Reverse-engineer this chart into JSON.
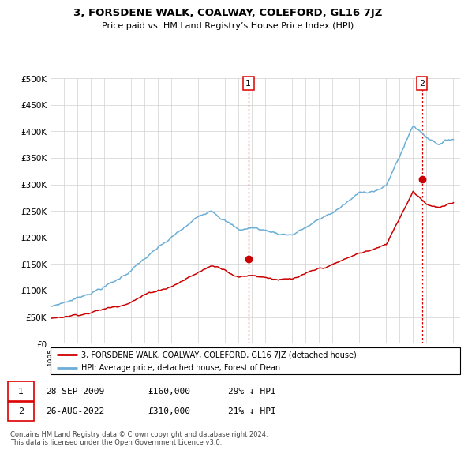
{
  "title": "3, FORSDENE WALK, COALWAY, COLEFORD, GL16 7JZ",
  "subtitle": "Price paid vs. HM Land Registry’s House Price Index (HPI)",
  "hpi_color": "#6baed6",
  "price_color": "#cc0000",
  "marker_color": "#cc0000",
  "vline_color": "#dd0000",
  "ylim": [
    0,
    500000
  ],
  "yticks": [
    0,
    50000,
    100000,
    150000,
    200000,
    250000,
    300000,
    350000,
    400000,
    450000,
    500000
  ],
  "ytick_labels": [
    "£0",
    "£50K",
    "£100K",
    "£150K",
    "£200K",
    "£250K",
    "£300K",
    "£350K",
    "£400K",
    "£450K",
    "£500K"
  ],
  "sale1_date": 2009.74,
  "sale1_price": 160000,
  "sale1_label": "1",
  "sale2_date": 2022.65,
  "sale2_price": 310000,
  "sale2_label": "2",
  "legend_property": "3, FORSDENE WALK, COALWAY, COLEFORD, GL16 7JZ (detached house)",
  "legend_hpi": "HPI: Average price, detached house, Forest of Dean",
  "note1_label": "1",
  "note1_date": "28-SEP-2009",
  "note1_price": "£160,000",
  "note1_pct": "29% ↓ HPI",
  "note2_label": "2",
  "note2_date": "26-AUG-2022",
  "note2_price": "£310,000",
  "note2_pct": "21% ↓ HPI",
  "copyright": "Contains HM Land Registry data © Crown copyright and database right 2024.\nThis data is licensed under the Open Government Licence v3.0.",
  "xmin": 1995.0,
  "xmax": 2025.5,
  "hpi_knot_years": [
    1995,
    1997,
    2000,
    2002,
    2004,
    2007,
    2008,
    2009,
    2010,
    2012,
    2013,
    2016,
    2018,
    2020,
    2022,
    2023,
    2024,
    2025
  ],
  "hpi_knot_vals": [
    70000,
    88000,
    125000,
    165000,
    200000,
    255000,
    240000,
    220000,
    225000,
    215000,
    215000,
    255000,
    290000,
    305000,
    420000,
    400000,
    390000,
    400000
  ],
  "price_knot_years": [
    1995,
    1997,
    2000,
    2002,
    2004,
    2007,
    2008,
    2009,
    2010,
    2012,
    2013,
    2016,
    2018,
    2020,
    2022,
    2023,
    2024,
    2025
  ],
  "price_knot_vals": [
    47000,
    57000,
    75000,
    100000,
    118000,
    158000,
    153000,
    140000,
    145000,
    140000,
    138000,
    160000,
    180000,
    195000,
    300000,
    278000,
    272000,
    278000
  ]
}
